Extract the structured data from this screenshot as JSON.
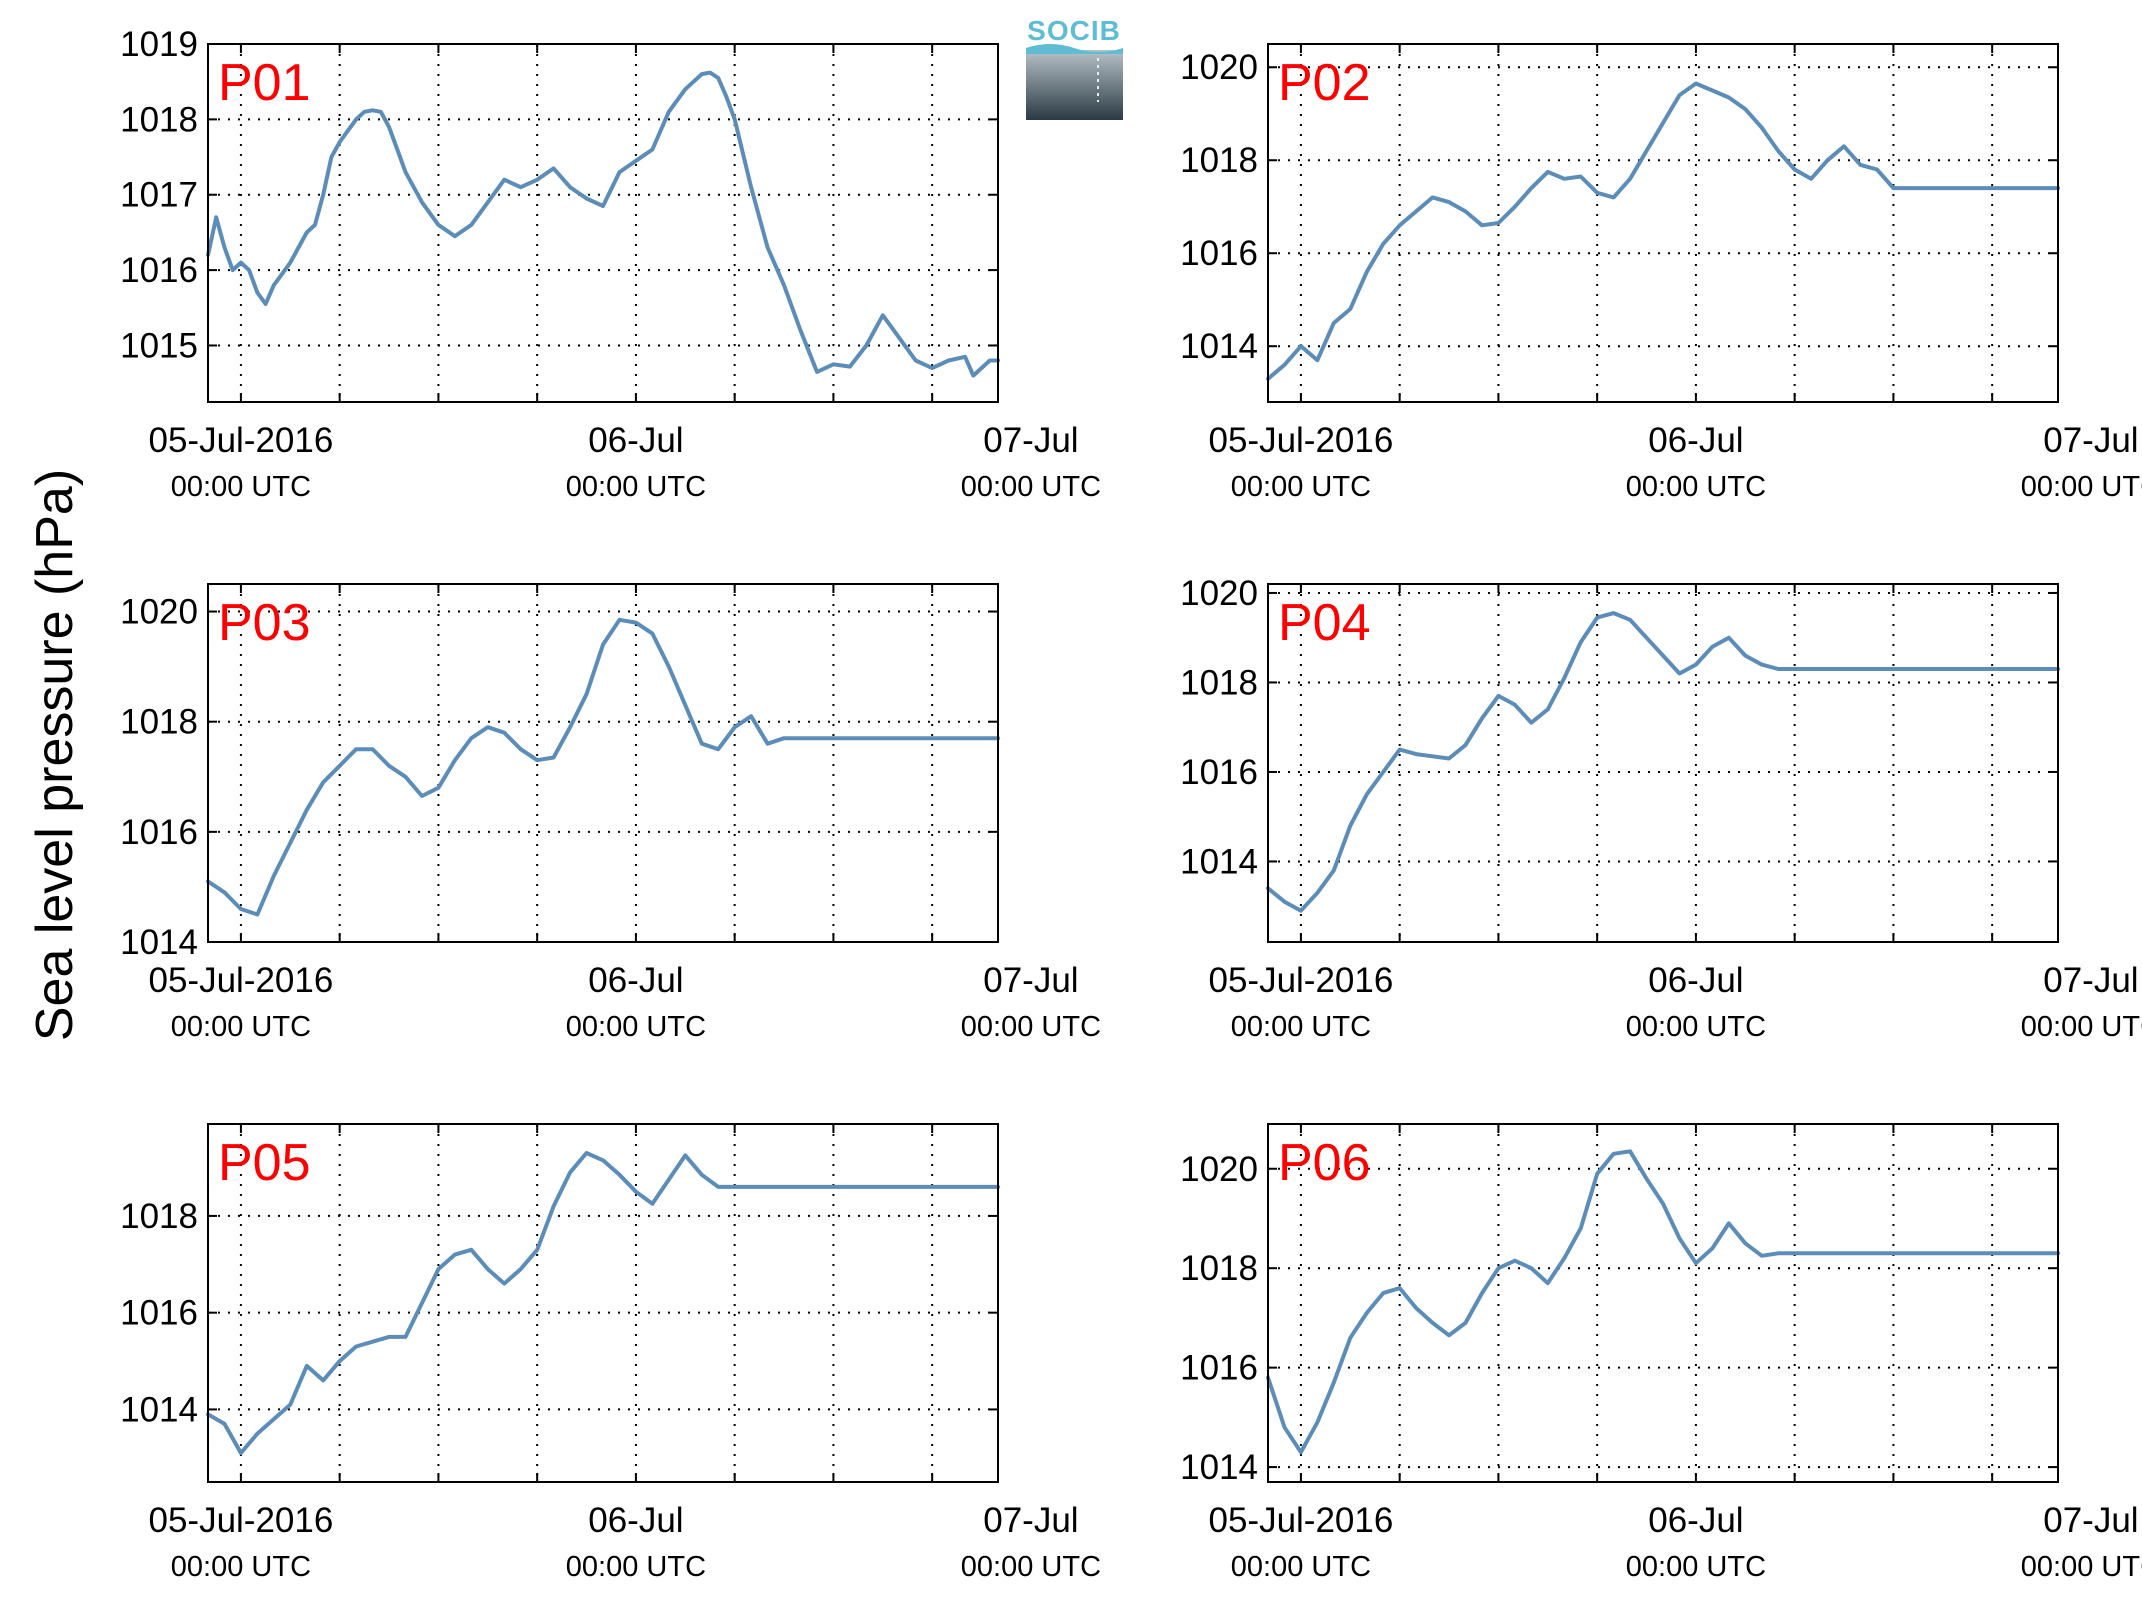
{
  "ylabel": "Sea level pressure (hPa)",
  "logo": {
    "text": "SOCIB"
  },
  "colors": {
    "line": "#5b8db8",
    "station_label": "#ff0000",
    "grid": "#000000"
  },
  "x_ticks": [
    {
      "date": "05-Jul-2016",
      "time": "00:00 UTC"
    },
    {
      "date": "06-Jul",
      "time": "00:00 UTC"
    },
    {
      "date": "07-Jul",
      "time": "00:00 UTC"
    }
  ],
  "chart_data": [
    {
      "type": "line",
      "station": "P01",
      "xlabel": "",
      "x_unit": "hours since 05-Jul-2016 00:00 UTC",
      "xlim": [
        -2,
        46
      ],
      "ylim": [
        1014.25,
        1019
      ],
      "yticks": [
        1015,
        1016,
        1017,
        1018,
        1019
      ],
      "grid": true,
      "x": [
        -2,
        -1.5,
        -1,
        -0.5,
        0,
        0.5,
        1,
        1.5,
        2,
        2.5,
        3,
        3.5,
        4,
        4.5,
        5,
        5.5,
        6,
        6.5,
        7,
        7.5,
        8,
        8.5,
        9,
        9.5,
        10,
        11,
        12,
        13,
        14,
        15,
        16,
        17,
        18,
        19,
        20,
        21,
        22,
        23,
        24,
        25,
        26,
        27,
        28,
        28.5,
        29,
        29.5,
        30,
        31,
        32,
        33,
        34,
        35,
        36,
        37,
        38,
        39,
        40,
        41,
        42,
        43,
        44,
        44.5,
        45,
        45.5,
        46
      ],
      "y": [
        1016.2,
        1016.7,
        1016.3,
        1016.0,
        1016.1,
        1016.0,
        1015.7,
        1015.55,
        1015.8,
        1015.95,
        1016.1,
        1016.3,
        1016.5,
        1016.6,
        1017.0,
        1017.5,
        1017.7,
        1017.85,
        1018.0,
        1018.1,
        1018.12,
        1018.1,
        1017.9,
        1017.6,
        1017.3,
        1016.9,
        1016.6,
        1016.45,
        1016.6,
        1016.9,
        1017.2,
        1017.1,
        1017.2,
        1017.35,
        1017.1,
        1016.95,
        1016.85,
        1017.3,
        1017.45,
        1017.6,
        1018.1,
        1018.4,
        1018.6,
        1018.62,
        1018.55,
        1018.3,
        1018.0,
        1017.1,
        1016.3,
        1015.8,
        1015.2,
        1014.65,
        1014.75,
        1014.72,
        1015.0,
        1015.4,
        1015.1,
        1014.8,
        1014.7,
        1014.8,
        1014.85,
        1014.6,
        1014.7,
        1014.8,
        1014.8
      ]
    },
    {
      "type": "line",
      "station": "P02",
      "xlabel": "",
      "x_unit": "hours since 05-Jul-2016 00:00 UTC",
      "xlim": [
        -2,
        46
      ],
      "ylim": [
        1012.8,
        1020.5
      ],
      "yticks": [
        1014,
        1016,
        1018,
        1020
      ],
      "grid": true,
      "x": [
        -2,
        -1,
        0,
        1,
        2,
        3,
        4,
        5,
        6,
        7,
        8,
        9,
        10,
        11,
        12,
        13,
        14,
        15,
        16,
        17,
        18,
        19,
        20,
        21,
        22,
        23,
        24,
        25,
        26,
        27,
        28,
        29,
        30,
        31,
        32,
        33,
        34,
        35,
        36,
        37,
        38,
        39,
        40,
        41,
        42,
        43,
        44,
        45,
        46
      ],
      "y": [
        1013.3,
        1013.6,
        1014.0,
        1013.7,
        1014.5,
        1014.8,
        1015.6,
        1016.2,
        1016.6,
        1016.9,
        1017.2,
        1017.1,
        1016.9,
        1016.6,
        1016.65,
        1017.0,
        1017.4,
        1017.75,
        1017.6,
        1017.65,
        1017.3,
        1017.2,
        1017.6,
        1018.2,
        1018.8,
        1019.4,
        1019.65,
        1019.5,
        1019.35,
        1019.1,
        1018.7,
        1018.2,
        1017.8,
        1017.6,
        1018.0,
        1018.3,
        1017.9,
        1017.8,
        1017.4,
        1017.4,
        1017.4,
        1017.4,
        1017.4,
        1017.4,
        1017.4,
        1017.4,
        1017.4,
        1017.4,
        1017.4
      ]
    },
    {
      "type": "line",
      "station": "P03",
      "xlabel": "",
      "x_unit": "hours since 05-Jul-2016 00:00 UTC",
      "xlim": [
        -2,
        46
      ],
      "ylim": [
        1014,
        1020.5
      ],
      "yticks": [
        1014,
        1016,
        1018,
        1020
      ],
      "grid": true,
      "x": [
        -2,
        -1,
        0,
        1,
        2,
        3,
        4,
        5,
        6,
        7,
        8,
        9,
        10,
        11,
        12,
        13,
        14,
        15,
        16,
        17,
        18,
        19,
        20,
        21,
        22,
        23,
        24,
        25,
        26,
        27,
        28,
        29,
        30,
        31,
        32,
        33,
        34,
        35,
        36,
        37,
        38,
        39,
        40,
        41,
        42,
        43,
        44,
        45,
        46
      ],
      "y": [
        1015.1,
        1014.9,
        1014.6,
        1014.5,
        1015.2,
        1015.8,
        1016.4,
        1016.9,
        1017.2,
        1017.5,
        1017.5,
        1017.2,
        1017.0,
        1016.65,
        1016.8,
        1017.3,
        1017.7,
        1017.9,
        1017.8,
        1017.5,
        1017.3,
        1017.35,
        1017.9,
        1018.5,
        1019.4,
        1019.85,
        1019.8,
        1019.6,
        1019.0,
        1018.3,
        1017.6,
        1017.5,
        1017.9,
        1018.1,
        1017.6,
        1017.7,
        1017.7,
        1017.7,
        1017.7,
        1017.7,
        1017.7,
        1017.7,
        1017.7,
        1017.7,
        1017.7,
        1017.7,
        1017.7,
        1017.7,
        1017.7
      ]
    },
    {
      "type": "line",
      "station": "P04",
      "xlabel": "",
      "x_unit": "hours since 05-Jul-2016 00:00 UTC",
      "xlim": [
        -2,
        46
      ],
      "ylim": [
        1012.2,
        1020.2
      ],
      "yticks": [
        1014,
        1016,
        1018,
        1020
      ],
      "grid": true,
      "x": [
        -2,
        -1,
        0,
        1,
        2,
        3,
        4,
        5,
        6,
        7,
        8,
        9,
        10,
        11,
        12,
        13,
        14,
        15,
        16,
        17,
        18,
        19,
        20,
        21,
        22,
        23,
        24,
        25,
        26,
        27,
        28,
        29,
        30,
        31,
        32,
        33,
        34,
        35,
        36,
        37,
        38,
        39,
        40,
        41,
        42,
        43,
        44,
        45,
        46
      ],
      "y": [
        1013.4,
        1013.1,
        1012.9,
        1013.3,
        1013.8,
        1014.8,
        1015.5,
        1016.0,
        1016.5,
        1016.4,
        1016.35,
        1016.3,
        1016.6,
        1017.2,
        1017.7,
        1017.5,
        1017.1,
        1017.4,
        1018.1,
        1018.9,
        1019.45,
        1019.55,
        1019.4,
        1019.0,
        1018.6,
        1018.2,
        1018.4,
        1018.8,
        1019.0,
        1018.6,
        1018.4,
        1018.3,
        1018.3,
        1018.3,
        1018.3,
        1018.3,
        1018.3,
        1018.3,
        1018.3,
        1018.3,
        1018.3,
        1018.3,
        1018.3,
        1018.3,
        1018.3,
        1018.3,
        1018.3,
        1018.3,
        1018.3
      ]
    },
    {
      "type": "line",
      "station": "P05",
      "xlabel": "",
      "x_unit": "hours since 05-Jul-2016 00:00 UTC",
      "xlim": [
        -2,
        46
      ],
      "ylim": [
        1012.5,
        1019.9
      ],
      "yticks": [
        1014,
        1016,
        1018
      ],
      "grid": true,
      "x": [
        -2,
        -1,
        0,
        1,
        2,
        3,
        4,
        5,
        6,
        7,
        8,
        9,
        10,
        11,
        12,
        13,
        14,
        15,
        16,
        17,
        18,
        19,
        20,
        21,
        22,
        23,
        24,
        25,
        26,
        27,
        28,
        29,
        30,
        31,
        32,
        33,
        34,
        35,
        36,
        37,
        38,
        39,
        40,
        41,
        42,
        43,
        44,
        45,
        46
      ],
      "y": [
        1013.9,
        1013.7,
        1013.1,
        1013.5,
        1013.8,
        1014.1,
        1014.9,
        1014.6,
        1015.0,
        1015.3,
        1015.4,
        1015.5,
        1015.5,
        1016.2,
        1016.9,
        1017.2,
        1017.3,
        1016.9,
        1016.6,
        1016.9,
        1017.3,
        1018.2,
        1018.9,
        1019.3,
        1019.15,
        1018.85,
        1018.5,
        1018.25,
        1018.75,
        1019.25,
        1018.85,
        1018.6,
        1018.6,
        1018.6,
        1018.6,
        1018.6,
        1018.6,
        1018.6,
        1018.6,
        1018.6,
        1018.6,
        1018.6,
        1018.6,
        1018.6,
        1018.6,
        1018.6,
        1018.6,
        1018.6,
        1018.6
      ]
    },
    {
      "type": "line",
      "station": "P06",
      "xlabel": "",
      "x_unit": "hours since 05-Jul-2016 00:00 UTC",
      "xlim": [
        -2,
        46
      ],
      "ylim": [
        1013.7,
        1020.9
      ],
      "yticks": [
        1014,
        1016,
        1018,
        1020
      ],
      "grid": true,
      "x": [
        -2,
        -1,
        0,
        1,
        2,
        3,
        4,
        5,
        6,
        7,
        8,
        9,
        10,
        11,
        12,
        13,
        14,
        15,
        16,
        17,
        18,
        19,
        20,
        21,
        22,
        23,
        24,
        25,
        26,
        27,
        28,
        29,
        30,
        31,
        32,
        33,
        34,
        35,
        36,
        37,
        38,
        39,
        40,
        41,
        42,
        43,
        44,
        45,
        46
      ],
      "y": [
        1015.8,
        1014.8,
        1014.3,
        1014.9,
        1015.7,
        1016.6,
        1017.1,
        1017.5,
        1017.6,
        1017.2,
        1016.9,
        1016.65,
        1016.9,
        1017.5,
        1018.0,
        1018.15,
        1018.0,
        1017.7,
        1018.2,
        1018.8,
        1019.9,
        1020.3,
        1020.35,
        1019.8,
        1019.3,
        1018.6,
        1018.1,
        1018.4,
        1018.9,
        1018.5,
        1018.25,
        1018.3,
        1018.3,
        1018.3,
        1018.3,
        1018.3,
        1018.3,
        1018.3,
        1018.3,
        1018.3,
        1018.3,
        1018.3,
        1018.3,
        1018.3,
        1018.3,
        1018.3,
        1018.3,
        1018.3,
        1018.3
      ]
    }
  ]
}
